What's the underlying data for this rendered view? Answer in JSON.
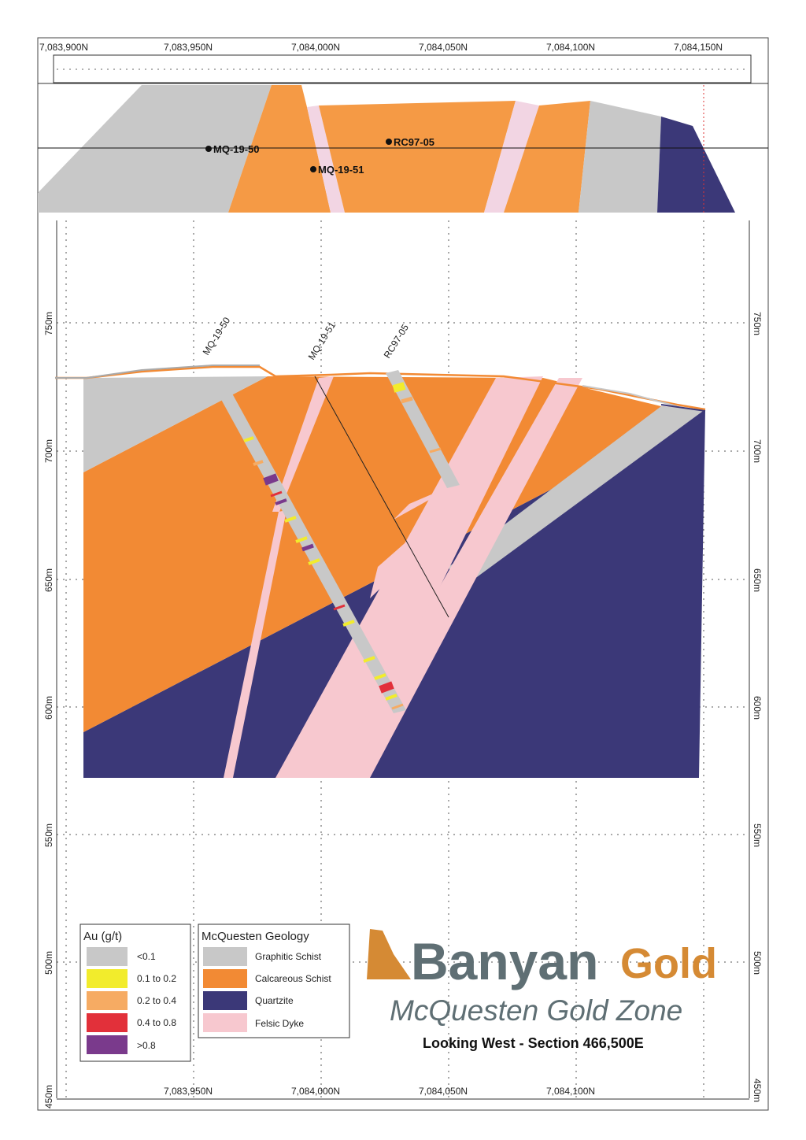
{
  "plan_view": {
    "northing_labels": [
      "7,083,900N",
      "7,083,950N",
      "7,084,000N",
      "7,084,050N",
      "7,084,100N",
      "7,084,150N"
    ],
    "collars": [
      "MQ-19-50",
      "MQ-19-51",
      "RC97-05"
    ]
  },
  "section": {
    "elevation_labels_left": [
      "750m",
      "700m",
      "650m",
      "600m",
      "550m",
      "500m",
      "450m"
    ],
    "elevation_labels_right": [
      "750m",
      "700m",
      "650m",
      "600m",
      "550m",
      "500m",
      "450m"
    ],
    "bottom_northing_labels": [
      "7,083,950N",
      "7,084,000N",
      "7,084,050N",
      "7,084,100N"
    ],
    "drillholes": [
      "MQ-19-50",
      "MQ-19-51",
      "RC97-05"
    ]
  },
  "legend_au": {
    "title": "Au (g/t)",
    "items": [
      {
        "label": "<0.1",
        "color": "#c8c8c8"
      },
      {
        "label": "0.1 to 0.2",
        "color": "#f2ec2c"
      },
      {
        "label": "0.2 to 0.4",
        "color": "#f6ab63"
      },
      {
        "label": "0.4 to 0.8",
        "color": "#e2303a"
      },
      {
        "label": ">0.8",
        "color": "#7a3a8c"
      }
    ]
  },
  "legend_geology": {
    "title": "McQuesten Geology",
    "items": [
      {
        "label": "Graphitic Schist",
        "color": "#c8c8c8"
      },
      {
        "label": "Calcareous Schist",
        "color": "#f28a34"
      },
      {
        "label": "Quartzite",
        "color": "#3b3878"
      },
      {
        "label": "Felsic Dyke",
        "color": "#f7c8cf"
      }
    ]
  },
  "branding": {
    "company_part1": "Banyan",
    "company_part2": "Gold",
    "zone": "McQuesten Gold Zone",
    "section_title": "Looking West - Section 466,500E"
  },
  "colors": {
    "graphitic_schist": "#c8c8c8",
    "calcareous_schist": "#f28a34",
    "quartzite": "#3b3878",
    "felsic_dyke": "#f7c8cf",
    "plan_orange": "#f59a45"
  }
}
